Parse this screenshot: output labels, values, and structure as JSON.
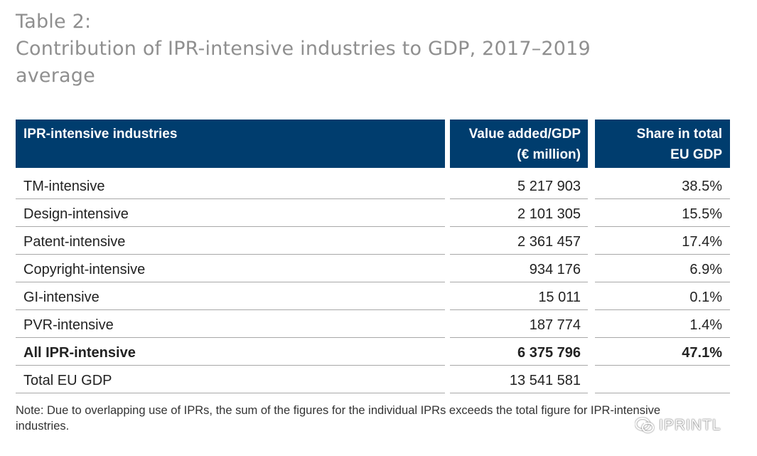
{
  "title": {
    "line1": "Table 2:",
    "line2": "Contribution of IPR-intensive industries to GDP, 2017–2019",
    "line3": "average"
  },
  "table": {
    "headers": {
      "col1": "IPR-intensive industries",
      "col2_line1": "Value added/GDP",
      "col2_line2": "(€ million)",
      "col3_line1": "Share in total",
      "col3_line2": "EU GDP"
    },
    "rows": [
      {
        "industry": "TM-intensive",
        "value": "5 217 903",
        "share": "38.5%"
      },
      {
        "industry": "Design-intensive",
        "value": "2 101 305",
        "share": "15.5%"
      },
      {
        "industry": "Patent-intensive",
        "value": "2 361 457",
        "share": "17.4%"
      },
      {
        "industry": "Copyright-intensive",
        "value": "934 176",
        "share": "6.9%"
      },
      {
        "industry": "GI-intensive",
        "value": "15 011",
        "share": "0.1%"
      },
      {
        "industry": "PVR-intensive",
        "value": "187 774",
        "share": "1.4%"
      },
      {
        "industry": "All IPR-intensive",
        "value": "6 375 796",
        "share": "47.1%",
        "bold": true
      },
      {
        "industry": "Total EU GDP",
        "value": "13 541 581",
        "share": ""
      }
    ]
  },
  "note": {
    "line1": "Note: Due to overlapping use of IPRs, the sum of the figures for the individual IPRs exceeds the total figure for IPR-intensive",
    "line2": "industries."
  },
  "watermark": {
    "icon": "wechat-icon",
    "text": "IPRINTL"
  },
  "colors": {
    "header_bg": "#003d6e",
    "title_text": "#8f8f8f",
    "rule": "#a8a8a8"
  }
}
